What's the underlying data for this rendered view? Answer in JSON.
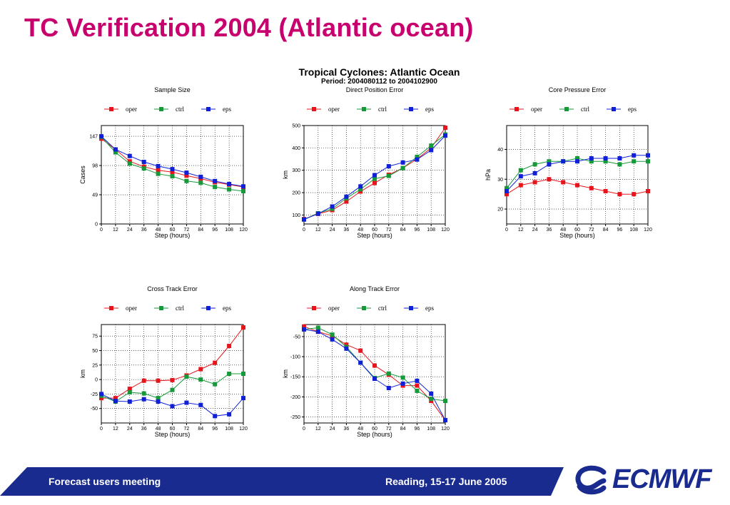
{
  "slide": {
    "title": "TC Verification 2004 (Atlantic ocean)"
  },
  "header": {
    "main_title": "Tropical Cyclones: Atlantic Ocean",
    "period": "Period: 2004080112 to 2004102900"
  },
  "footer": {
    "left_text": "Forecast users meeting",
    "right_text": "Reading, 15-17 June 2005",
    "band_color": "#1a2b8f",
    "logo": "ECMWF",
    "logo_color": "#1a2b8f"
  },
  "chart_data": [
    {
      "type": "line",
      "title": "Sample Size",
      "xlabel": "Step (hours)",
      "ylabel": "Cases",
      "x": [
        0,
        12,
        24,
        36,
        48,
        60,
        72,
        84,
        96,
        108,
        120
      ],
      "xlim": [
        0,
        120
      ],
      "ylim": [
        0,
        165
      ],
      "yticks": [
        0,
        49,
        98,
        147
      ],
      "grid": true,
      "legend": "top",
      "series": [
        {
          "name": "oper",
          "color": "#e8141c",
          "values": [
            143,
            125,
            105,
            96,
            90,
            87,
            81,
            76,
            70,
            66,
            62
          ]
        },
        {
          "name": "ctrl",
          "color": "#159a3a",
          "values": [
            146,
            120,
            101,
            93,
            84,
            80,
            72,
            69,
            62,
            58,
            55
          ]
        },
        {
          "name": "eps",
          "color": "#1020d8",
          "values": [
            147,
            125,
            114,
            104,
            97,
            92,
            86,
            79,
            72,
            67,
            63
          ]
        }
      ]
    },
    {
      "type": "line",
      "title": "Direct Position Error",
      "xlabel": "Step (hours)",
      "ylabel": "km",
      "x": [
        0,
        12,
        24,
        36,
        48,
        60,
        72,
        84,
        96,
        108,
        120
      ],
      "xlim": [
        0,
        120
      ],
      "ylim": [
        60,
        500
      ],
      "yticks": [
        100,
        200,
        300,
        400,
        500
      ],
      "grid": true,
      "legend": "top",
      "series": [
        {
          "name": "oper",
          "color": "#e8141c",
          "values": [
            82,
            105,
            122,
            160,
            205,
            243,
            280,
            310,
            350,
            400,
            490
          ]
        },
        {
          "name": "ctrl",
          "color": "#159a3a",
          "values": [
            80,
            108,
            128,
            175,
            215,
            262,
            275,
            310,
            360,
            410,
            460
          ]
        },
        {
          "name": "eps",
          "color": "#1020d8",
          "values": [
            80,
            106,
            138,
            182,
            228,
            278,
            318,
            335,
            348,
            390,
            455
          ]
        }
      ]
    },
    {
      "type": "line",
      "title": "Core Pressure Error",
      "xlabel": "Step (hours)",
      "ylabel": "hPa",
      "x": [
        0,
        12,
        24,
        36,
        48,
        60,
        72,
        84,
        96,
        108,
        120
      ],
      "xlim": [
        0,
        120
      ],
      "ylim": [
        15,
        48
      ],
      "yticks": [
        20,
        30,
        40
      ],
      "grid": true,
      "legend": "top",
      "series": [
        {
          "name": "oper",
          "color": "#e8141c",
          "values": [
            25,
            28,
            29,
            30,
            29,
            28,
            27,
            26,
            25,
            25,
            26
          ]
        },
        {
          "name": "ctrl",
          "color": "#159a3a",
          "values": [
            27,
            33,
            35,
            36,
            36,
            37,
            36,
            36,
            35,
            36,
            36
          ]
        },
        {
          "name": "eps",
          "color": "#1020d8",
          "values": [
            26,
            31,
            32,
            35,
            36,
            36,
            37,
            37,
            37,
            38,
            38
          ]
        }
      ]
    },
    {
      "type": "line",
      "title": "Cross Track Error",
      "xlabel": "Step (hours)",
      "ylabel": "km",
      "x": [
        0,
        12,
        24,
        36,
        48,
        60,
        72,
        84,
        96,
        108,
        120
      ],
      "xlim": [
        0,
        120
      ],
      "ylim": [
        -75,
        95
      ],
      "yticks": [
        -50,
        -25,
        0,
        25,
        50,
        75
      ],
      "grid": true,
      "legend": "top",
      "series": [
        {
          "name": "oper",
          "color": "#e8141c",
          "values": [
            -32,
            -32,
            -16,
            -2,
            -2,
            -1,
            7,
            18,
            29,
            58,
            90
          ]
        },
        {
          "name": "ctrl",
          "color": "#159a3a",
          "values": [
            -28,
            -38,
            -22,
            -24,
            -32,
            -18,
            5,
            0,
            -8,
            10,
            10
          ]
        },
        {
          "name": "eps",
          "color": "#1020d8",
          "values": [
            -25,
            -37,
            -38,
            -34,
            -38,
            -46,
            -40,
            -44,
            -63,
            -60,
            -32
          ]
        }
      ]
    },
    {
      "type": "line",
      "title": "Along Track Error",
      "xlabel": "Step (hours)",
      "ylabel": "km",
      "x": [
        0,
        12,
        24,
        36,
        48,
        60,
        72,
        84,
        96,
        108,
        120
      ],
      "xlim": [
        0,
        120
      ],
      "ylim": [
        -265,
        -20
      ],
      "yticks": [
        -50,
        -100,
        -150,
        -200,
        -250
      ],
      "grid": true,
      "legend": "top",
      "series": [
        {
          "name": "oper",
          "color": "#e8141c",
          "values": [
            -25,
            -38,
            -48,
            -70,
            -85,
            -122,
            -145,
            -172,
            -172,
            -210,
            -258
          ]
        },
        {
          "name": "ctrl",
          "color": "#159a3a",
          "values": [
            -32,
            -28,
            -45,
            -76,
            -115,
            -153,
            -142,
            -152,
            -185,
            -205,
            -210
          ]
        },
        {
          "name": "eps",
          "color": "#1020d8",
          "values": [
            -32,
            -38,
            -57,
            -80,
            -115,
            -155,
            -178,
            -167,
            -160,
            -192,
            -258
          ]
        }
      ]
    }
  ]
}
